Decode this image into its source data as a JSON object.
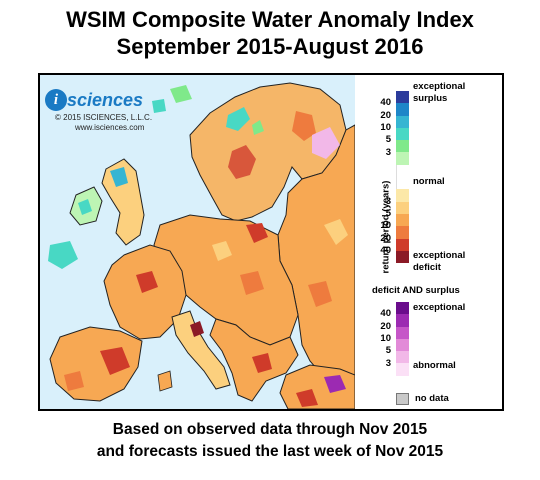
{
  "title": {
    "line1": "WSIM Composite Water Anomaly Index",
    "line2": "September 2015-August 2016"
  },
  "logo": {
    "word": "sciences",
    "initial": "i",
    "copyright": "© 2015 ISCIENCES, L.L.C.",
    "url": "www.isciences.com"
  },
  "legend": {
    "axis_label": "return period (years)",
    "upper": {
      "top_label_1": "exceptional",
      "top_label_2": "surplus",
      "mid_label": "normal",
      "bottom_label_1": "exceptional",
      "bottom_label_2": "deficit",
      "ticks": [
        "40",
        "20",
        "10",
        "5",
        "3",
        "3",
        "5",
        "10",
        "20",
        "40"
      ],
      "colors": [
        "#2c3c9c",
        "#1e86c8",
        "#36b5d2",
        "#48d8c4",
        "#7fe98a",
        "#bdf5b4",
        "#ffffff",
        "#ffffff",
        "#fce8a8",
        "#fcd07e",
        "#f7a853",
        "#ee7b3e",
        "#cf3b2a",
        "#8b1a26"
      ]
    },
    "lower": {
      "heading": "deficit AND surplus",
      "top_label": "exceptional",
      "bottom_label": "abnormal",
      "ticks": [
        "40",
        "20",
        "10",
        "5",
        "3"
      ],
      "colors": [
        "#6a0c8c",
        "#9c2ab2",
        "#c656c8",
        "#e28ad8",
        "#f2b8e8",
        "#fbe0f6"
      ]
    },
    "no_data": "no data"
  },
  "footer": {
    "line1": "Based on observed data through Nov 2015",
    "line2": "and forecasts issued the last week of Nov 2015"
  }
}
